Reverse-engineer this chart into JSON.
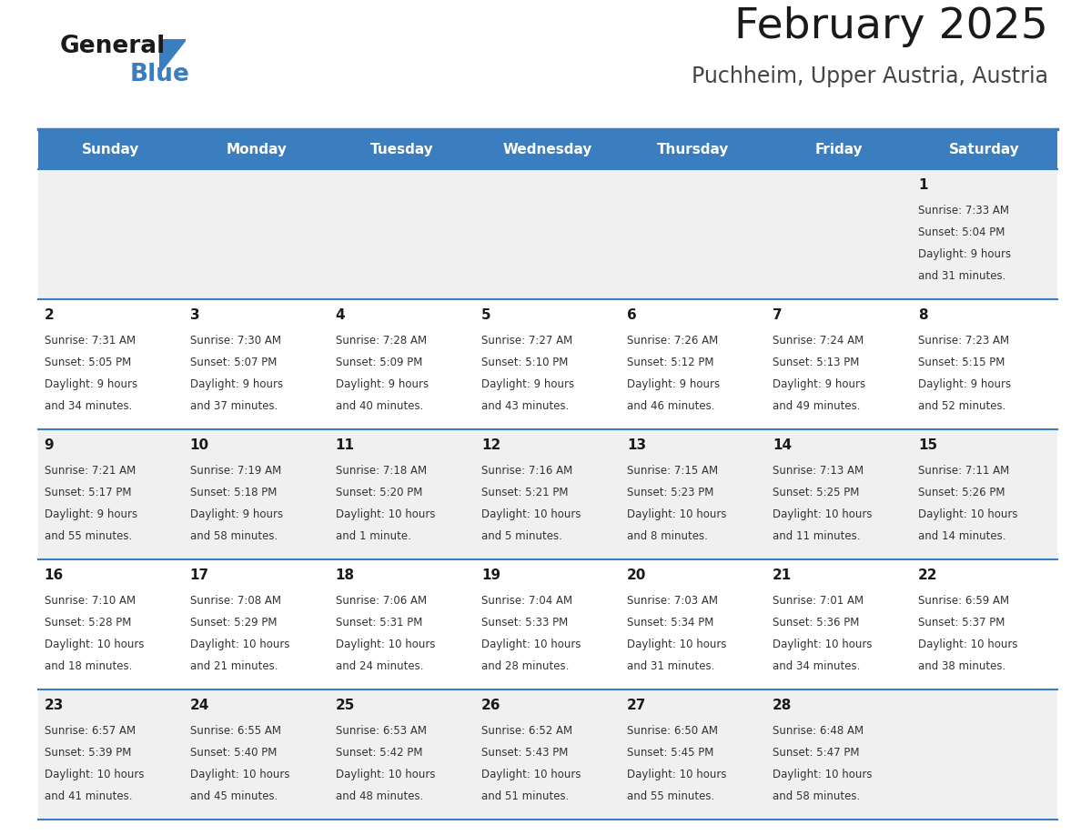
{
  "title": "February 2025",
  "subtitle": "Puchheim, Upper Austria, Austria",
  "header_bg": "#3a7ebf",
  "header_text": "#ffffff",
  "row_bg_odd": "#f0f0f0",
  "row_bg_even": "#ffffff",
  "border_color": "#3a7ebf",
  "day_names": [
    "Sunday",
    "Monday",
    "Tuesday",
    "Wednesday",
    "Thursday",
    "Friday",
    "Saturday"
  ],
  "days": [
    {
      "day": 1,
      "col": 6,
      "row": 0,
      "sunrise": "7:33 AM",
      "sunset": "5:04 PM",
      "daylight": "9 hours",
      "daylight2": "and 31 minutes."
    },
    {
      "day": 2,
      "col": 0,
      "row": 1,
      "sunrise": "7:31 AM",
      "sunset": "5:05 PM",
      "daylight": "9 hours",
      "daylight2": "and 34 minutes."
    },
    {
      "day": 3,
      "col": 1,
      "row": 1,
      "sunrise": "7:30 AM",
      "sunset": "5:07 PM",
      "daylight": "9 hours",
      "daylight2": "and 37 minutes."
    },
    {
      "day": 4,
      "col": 2,
      "row": 1,
      "sunrise": "7:28 AM",
      "sunset": "5:09 PM",
      "daylight": "9 hours",
      "daylight2": "and 40 minutes."
    },
    {
      "day": 5,
      "col": 3,
      "row": 1,
      "sunrise": "7:27 AM",
      "sunset": "5:10 PM",
      "daylight": "9 hours",
      "daylight2": "and 43 minutes."
    },
    {
      "day": 6,
      "col": 4,
      "row": 1,
      "sunrise": "7:26 AM",
      "sunset": "5:12 PM",
      "daylight": "9 hours",
      "daylight2": "and 46 minutes."
    },
    {
      "day": 7,
      "col": 5,
      "row": 1,
      "sunrise": "7:24 AM",
      "sunset": "5:13 PM",
      "daylight": "9 hours",
      "daylight2": "and 49 minutes."
    },
    {
      "day": 8,
      "col": 6,
      "row": 1,
      "sunrise": "7:23 AM",
      "sunset": "5:15 PM",
      "daylight": "9 hours",
      "daylight2": "and 52 minutes."
    },
    {
      "day": 9,
      "col": 0,
      "row": 2,
      "sunrise": "7:21 AM",
      "sunset": "5:17 PM",
      "daylight": "9 hours",
      "daylight2": "and 55 minutes."
    },
    {
      "day": 10,
      "col": 1,
      "row": 2,
      "sunrise": "7:19 AM",
      "sunset": "5:18 PM",
      "daylight": "9 hours",
      "daylight2": "and 58 minutes."
    },
    {
      "day": 11,
      "col": 2,
      "row": 2,
      "sunrise": "7:18 AM",
      "sunset": "5:20 PM",
      "daylight": "10 hours",
      "daylight2": "and 1 minute."
    },
    {
      "day": 12,
      "col": 3,
      "row": 2,
      "sunrise": "7:16 AM",
      "sunset": "5:21 PM",
      "daylight": "10 hours",
      "daylight2": "and 5 minutes."
    },
    {
      "day": 13,
      "col": 4,
      "row": 2,
      "sunrise": "7:15 AM",
      "sunset": "5:23 PM",
      "daylight": "10 hours",
      "daylight2": "and 8 minutes."
    },
    {
      "day": 14,
      "col": 5,
      "row": 2,
      "sunrise": "7:13 AM",
      "sunset": "5:25 PM",
      "daylight": "10 hours",
      "daylight2": "and 11 minutes."
    },
    {
      "day": 15,
      "col": 6,
      "row": 2,
      "sunrise": "7:11 AM",
      "sunset": "5:26 PM",
      "daylight": "10 hours",
      "daylight2": "and 14 minutes."
    },
    {
      "day": 16,
      "col": 0,
      "row": 3,
      "sunrise": "7:10 AM",
      "sunset": "5:28 PM",
      "daylight": "10 hours",
      "daylight2": "and 18 minutes."
    },
    {
      "day": 17,
      "col": 1,
      "row": 3,
      "sunrise": "7:08 AM",
      "sunset": "5:29 PM",
      "daylight": "10 hours",
      "daylight2": "and 21 minutes."
    },
    {
      "day": 18,
      "col": 2,
      "row": 3,
      "sunrise": "7:06 AM",
      "sunset": "5:31 PM",
      "daylight": "10 hours",
      "daylight2": "and 24 minutes."
    },
    {
      "day": 19,
      "col": 3,
      "row": 3,
      "sunrise": "7:04 AM",
      "sunset": "5:33 PM",
      "daylight": "10 hours",
      "daylight2": "and 28 minutes."
    },
    {
      "day": 20,
      "col": 4,
      "row": 3,
      "sunrise": "7:03 AM",
      "sunset": "5:34 PM",
      "daylight": "10 hours",
      "daylight2": "and 31 minutes."
    },
    {
      "day": 21,
      "col": 5,
      "row": 3,
      "sunrise": "7:01 AM",
      "sunset": "5:36 PM",
      "daylight": "10 hours",
      "daylight2": "and 34 minutes."
    },
    {
      "day": 22,
      "col": 6,
      "row": 3,
      "sunrise": "6:59 AM",
      "sunset": "5:37 PM",
      "daylight": "10 hours",
      "daylight2": "and 38 minutes."
    },
    {
      "day": 23,
      "col": 0,
      "row": 4,
      "sunrise": "6:57 AM",
      "sunset": "5:39 PM",
      "daylight": "10 hours",
      "daylight2": "and 41 minutes."
    },
    {
      "day": 24,
      "col": 1,
      "row": 4,
      "sunrise": "6:55 AM",
      "sunset": "5:40 PM",
      "daylight": "10 hours",
      "daylight2": "and 45 minutes."
    },
    {
      "day": 25,
      "col": 2,
      "row": 4,
      "sunrise": "6:53 AM",
      "sunset": "5:42 PM",
      "daylight": "10 hours",
      "daylight2": "and 48 minutes."
    },
    {
      "day": 26,
      "col": 3,
      "row": 4,
      "sunrise": "6:52 AM",
      "sunset": "5:43 PM",
      "daylight": "10 hours",
      "daylight2": "and 51 minutes."
    },
    {
      "day": 27,
      "col": 4,
      "row": 4,
      "sunrise": "6:50 AM",
      "sunset": "5:45 PM",
      "daylight": "10 hours",
      "daylight2": "and 55 minutes."
    },
    {
      "day": 28,
      "col": 5,
      "row": 4,
      "sunrise": "6:48 AM",
      "sunset": "5:47 PM",
      "daylight": "10 hours",
      "daylight2": "and 58 minutes."
    }
  ],
  "logo_text1_color": "#1a1a1a",
  "logo_text2_color": "#3a7ebf",
  "title_color": "#1a1a1a",
  "subtitle_color": "#444444",
  "day_number_color": "#1a1a1a",
  "cell_text_color": "#333333",
  "title_fontsize": 34,
  "subtitle_fontsize": 17,
  "header_fontsize": 11,
  "day_num_fontsize": 11,
  "cell_fontsize": 8.5
}
